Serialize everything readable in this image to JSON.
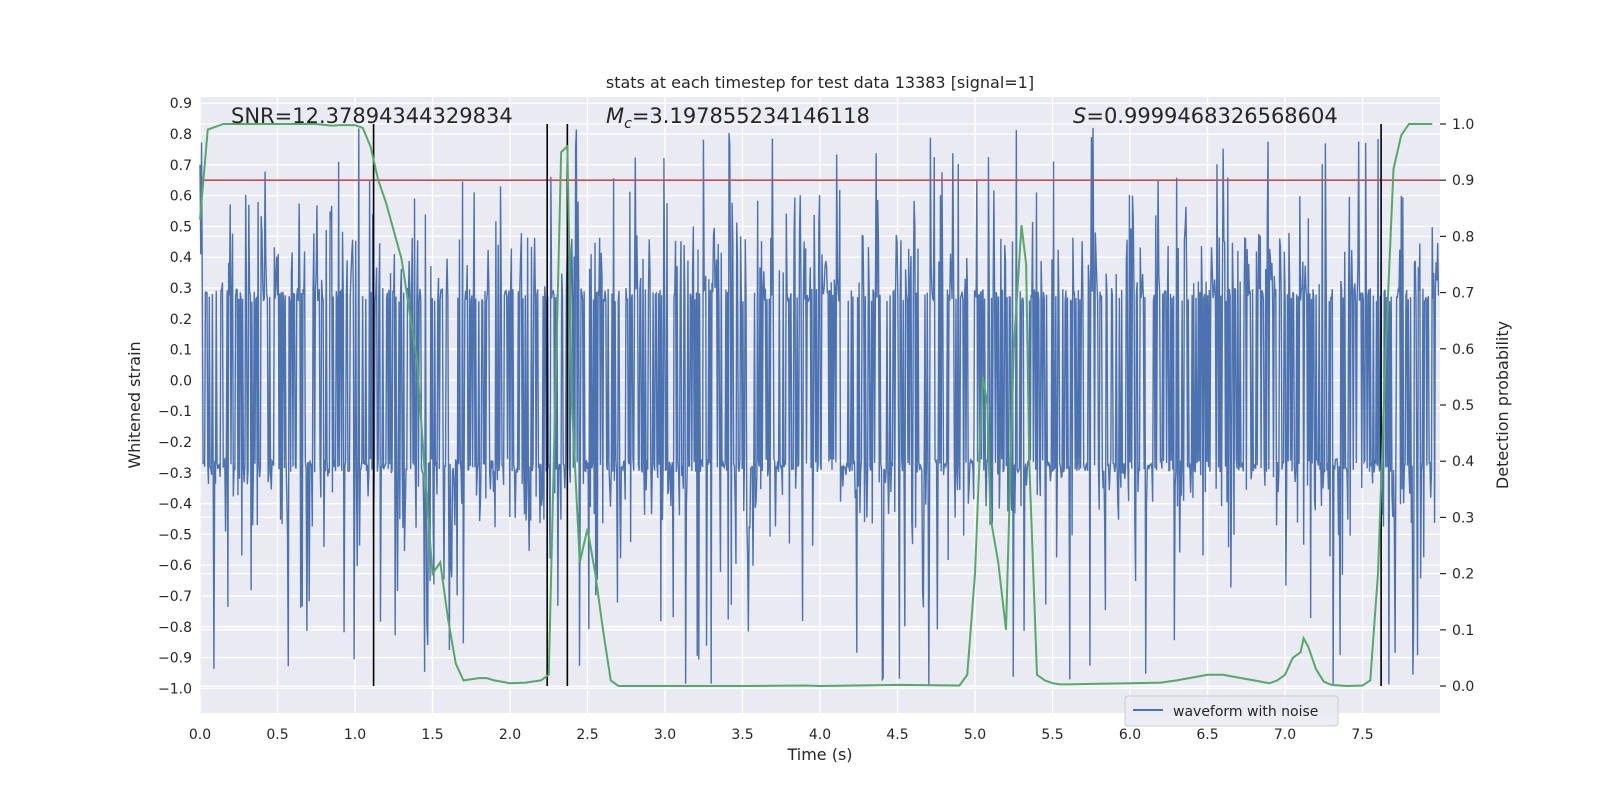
{
  "chart_data": {
    "type": "line",
    "title": "stats at each timestep for test data 13383 [signal=1]",
    "xlabel": "Time (s)",
    "ylabel_left": "Whitened strain",
    "ylabel_right": "Detection probability",
    "xlim": [
      0.0,
      8.0
    ],
    "ylim_left": [
      -1.08,
      0.92
    ],
    "ylim_right": [
      -0.048,
      1.048
    ],
    "x_ticks": [
      "0.0",
      "0.5",
      "1.0",
      "1.5",
      "2.0",
      "2.5",
      "3.0",
      "3.5",
      "4.0",
      "4.5",
      "5.0",
      "5.5",
      "6.0",
      "6.5",
      "7.0",
      "7.5"
    ],
    "x_tick_values": [
      0.0,
      0.5,
      1.0,
      1.5,
      2.0,
      2.5,
      3.0,
      3.5,
      4.0,
      4.5,
      5.0,
      5.5,
      6.0,
      6.5,
      7.0,
      7.5
    ],
    "y_left_ticks": [
      "0.9",
      "0.8",
      "0.7",
      "0.6",
      "0.5",
      "0.4",
      "0.3",
      "0.2",
      "0.1",
      "0.0",
      "−0.1",
      "−0.2",
      "−0.3",
      "−0.4",
      "−0.5",
      "−0.6",
      "−0.7",
      "−0.8",
      "−0.9",
      "−1.0"
    ],
    "y_left_tick_values": [
      0.9,
      0.8,
      0.7,
      0.6,
      0.5,
      0.4,
      0.3,
      0.2,
      0.1,
      0.0,
      -0.1,
      -0.2,
      -0.3,
      -0.4,
      -0.5,
      -0.6,
      -0.7,
      -0.8,
      -0.9,
      -1.0
    ],
    "y_right_ticks": [
      "1.0",
      "0.9",
      "0.8",
      "0.7",
      "0.6",
      "0.5",
      "0.4",
      "0.3",
      "0.2",
      "0.1",
      "0.0"
    ],
    "y_right_tick_values": [
      1.0,
      0.9,
      0.8,
      0.7,
      0.6,
      0.5,
      0.4,
      0.3,
      0.2,
      0.1,
      0.0
    ],
    "annotations": {
      "snr": "SNR=12.37894344329834",
      "mc_symbol": "M",
      "mc_sub": "c",
      "mc_value": "=3.197855234146118",
      "s_symbol": "S",
      "s_value": "=0.9999468326568604"
    },
    "legend": {
      "label": "waveform with noise",
      "placement": "lower-right"
    },
    "threshold": {
      "value": 0.9,
      "axis": "right",
      "color": "#c44e52"
    },
    "vlines": [
      1.12,
      2.24,
      2.37,
      7.62
    ],
    "waveform": {
      "name": "waveform with noise",
      "color": "#4c72b0",
      "t_start": 0.0,
      "t_end": 7.99,
      "samples": 1600,
      "core_amplitude": 0.3,
      "max_value": 0.82,
      "min_value": -0.99,
      "seed": 13383
    },
    "probability": {
      "name": "detection probability",
      "color": "#55a868",
      "x": [
        0.0,
        0.05,
        0.1,
        0.15,
        0.3,
        0.5,
        0.65,
        0.75,
        0.85,
        0.9,
        1.0,
        1.05,
        1.1,
        1.15,
        1.2,
        1.3,
        1.4,
        1.45,
        1.5,
        1.55,
        1.6,
        1.65,
        1.7,
        1.75,
        1.8,
        1.85,
        1.9,
        2.0,
        2.1,
        2.15,
        2.2,
        2.25,
        2.3,
        2.33,
        2.37,
        2.4,
        2.45,
        2.5,
        2.55,
        2.6,
        2.65,
        2.7,
        2.75,
        2.8,
        3.0,
        3.5,
        3.9,
        4.0,
        4.5,
        4.9,
        4.95,
        5.0,
        5.05,
        5.08,
        5.1,
        5.15,
        5.2,
        5.25,
        5.3,
        5.33,
        5.35,
        5.4,
        5.45,
        5.5,
        5.55,
        5.6,
        5.8,
        6.0,
        6.2,
        6.3,
        6.4,
        6.5,
        6.6,
        6.7,
        6.8,
        6.9,
        6.95,
        7.0,
        7.05,
        7.1,
        7.12,
        7.15,
        7.2,
        7.25,
        7.3,
        7.4,
        7.5,
        7.55,
        7.6,
        7.65,
        7.7,
        7.75,
        7.8,
        7.85,
        7.9,
        7.95
      ],
      "y": [
        0.83,
        0.99,
        0.995,
        1.0,
        1.0,
        1.0,
        1.0,
        1.0,
        0.997,
        0.998,
        0.998,
        0.993,
        0.96,
        0.9,
        0.86,
        0.76,
        0.58,
        0.38,
        0.2,
        0.22,
        0.12,
        0.04,
        0.01,
        0.012,
        0.014,
        0.014,
        0.01,
        0.005,
        0.006,
        0.008,
        0.01,
        0.02,
        0.6,
        0.95,
        0.96,
        0.5,
        0.22,
        0.28,
        0.2,
        0.1,
        0.01,
        0.0,
        0.0,
        0.0,
        0.0,
        0.0,
        0.001,
        0.0,
        0.002,
        0.001,
        0.02,
        0.2,
        0.55,
        0.5,
        0.3,
        0.22,
        0.1,
        0.6,
        0.82,
        0.75,
        0.4,
        0.02,
        0.01,
        0.005,
        0.003,
        0.003,
        0.004,
        0.005,
        0.006,
        0.01,
        0.015,
        0.02,
        0.02,
        0.015,
        0.01,
        0.005,
        0.01,
        0.02,
        0.05,
        0.06,
        0.085,
        0.07,
        0.03,
        0.008,
        0.002,
        0.0,
        0.001,
        0.01,
        0.2,
        0.6,
        0.92,
        0.98,
        1.0,
        1.0,
        1.0,
        1.0
      ]
    }
  }
}
